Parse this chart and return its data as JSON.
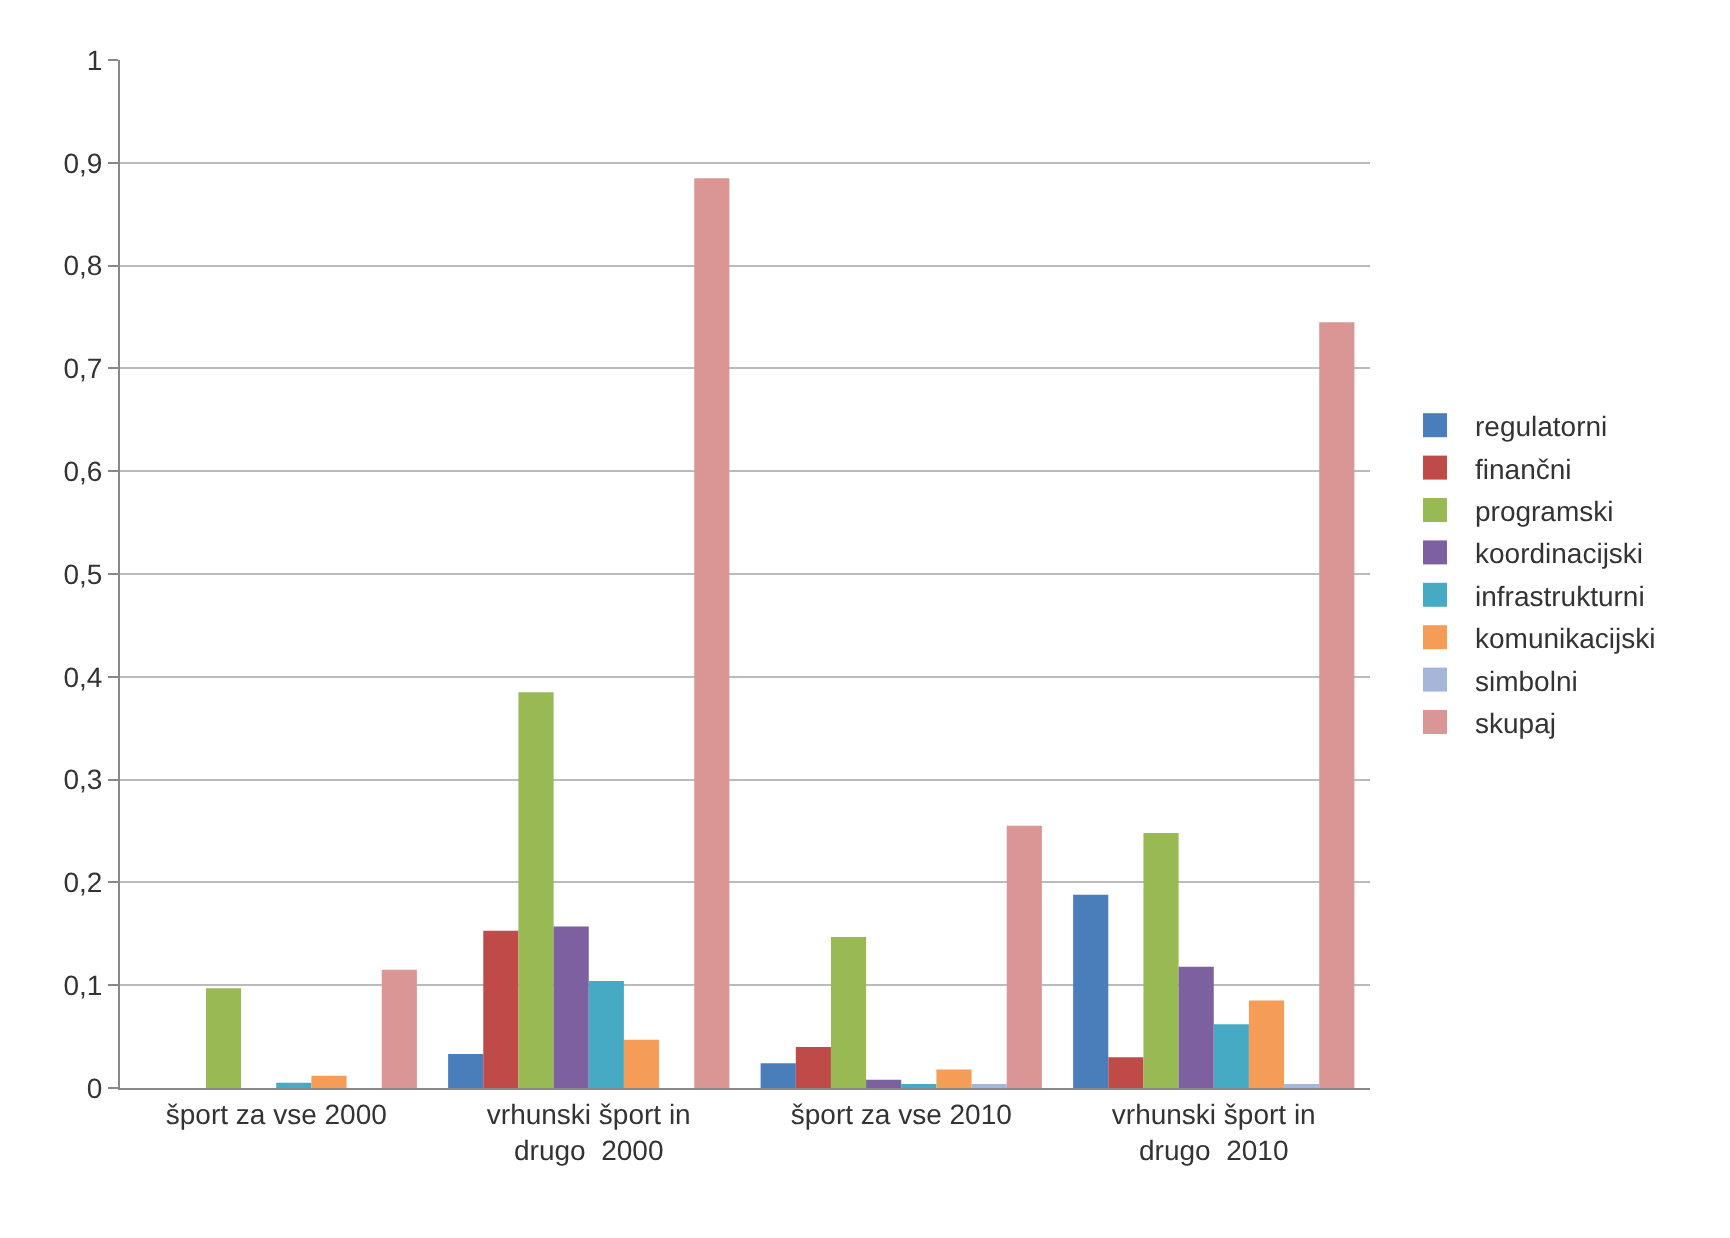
{
  "chart_data": {
    "type": "bar",
    "categories": [
      "šport za vse 2000",
      "vrhunski šport in\ndrugo  2000",
      "šport za vse 2010",
      "vrhunski šport in\ndrugo  2010"
    ],
    "series": [
      {
        "name": "regulatorni",
        "color": "#4a7ebb",
        "values": [
          0,
          0.033,
          0.024,
          0.188
        ]
      },
      {
        "name": "finančni",
        "color": "#be4b48",
        "values": [
          0,
          0.153,
          0.04,
          0.03
        ]
      },
      {
        "name": "programski",
        "color": "#98b954",
        "values": [
          0.097,
          0.385,
          0.147,
          0.248
        ]
      },
      {
        "name": "koordinacijski",
        "color": "#7d60a0",
        "values": [
          0,
          0.157,
          0.008,
          0.118
        ]
      },
      {
        "name": "infrastrukturni",
        "color": "#46aac5",
        "values": [
          0.005,
          0.104,
          0.004,
          0.062
        ]
      },
      {
        "name": "komunikacijski",
        "color": "#f59d56",
        "values": [
          0.012,
          0.047,
          0.018,
          0.085
        ]
      },
      {
        "name": "simbolni",
        "color": "#a5b6db",
        "values": [
          0,
          0,
          0.002,
          0.004
        ]
      },
      {
        "name": "skupaj",
        "color": "#d99694",
        "values": [
          0.115,
          0.885,
          0.255,
          0.745
        ]
      }
    ],
    "ylim": [
      0,
      1
    ],
    "yticks": [
      0,
      {
        "value": 0.1,
        "label": "0,1"
      },
      {
        "value": 0.2,
        "label": "0,2"
      },
      {
        "value": 0.3,
        "label": "0,3"
      },
      {
        "value": 0.4,
        "label": "0,4"
      },
      {
        "value": 0.5,
        "label": "0,5"
      },
      {
        "value": 0.6,
        "label": "0,6"
      },
      {
        "value": 0.7,
        "label": "0,7"
      },
      {
        "value": 0.8,
        "label": "0,8"
      },
      {
        "value": 0.9,
        "label": "0,9"
      },
      1
    ],
    "grid": "y",
    "legend": "right"
  }
}
